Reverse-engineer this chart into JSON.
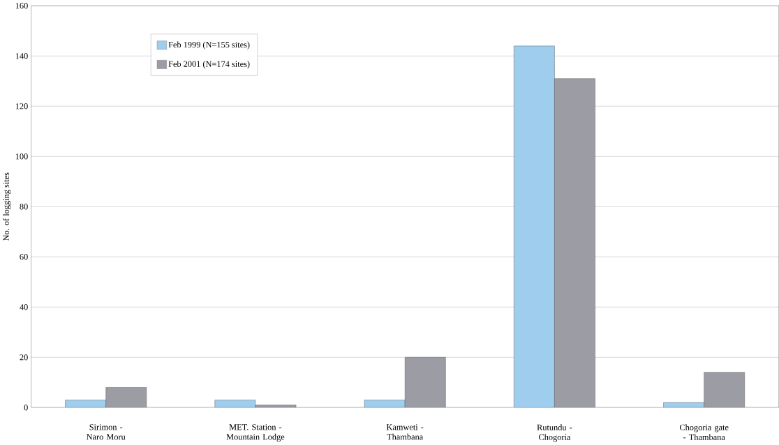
{
  "chart_data": {
    "type": "bar",
    "ylabel": "No. of logging sites",
    "categories": [
      "Sirimon - Naro Moru",
      "MET. Station - Mountain Lodge",
      "Kamweti - Thambana",
      "Rutundu - Chogoria",
      "Chogoria gate - Thambana"
    ],
    "series": [
      {
        "name": "Feb 1999 (N=155 sites)",
        "color": "#9fcdee",
        "values": [
          3,
          3,
          3,
          144,
          2
        ]
      },
      {
        "name": "Feb 2001 (N=174 sites)",
        "color": "#9c9ca4",
        "values": [
          8,
          1,
          20,
          131,
          14
        ]
      }
    ],
    "ylim": [
      0,
      160
    ],
    "yticks": [
      0,
      20,
      40,
      60,
      80,
      100,
      120,
      140,
      160
    ],
    "grid": "y",
    "legend": "top left"
  }
}
